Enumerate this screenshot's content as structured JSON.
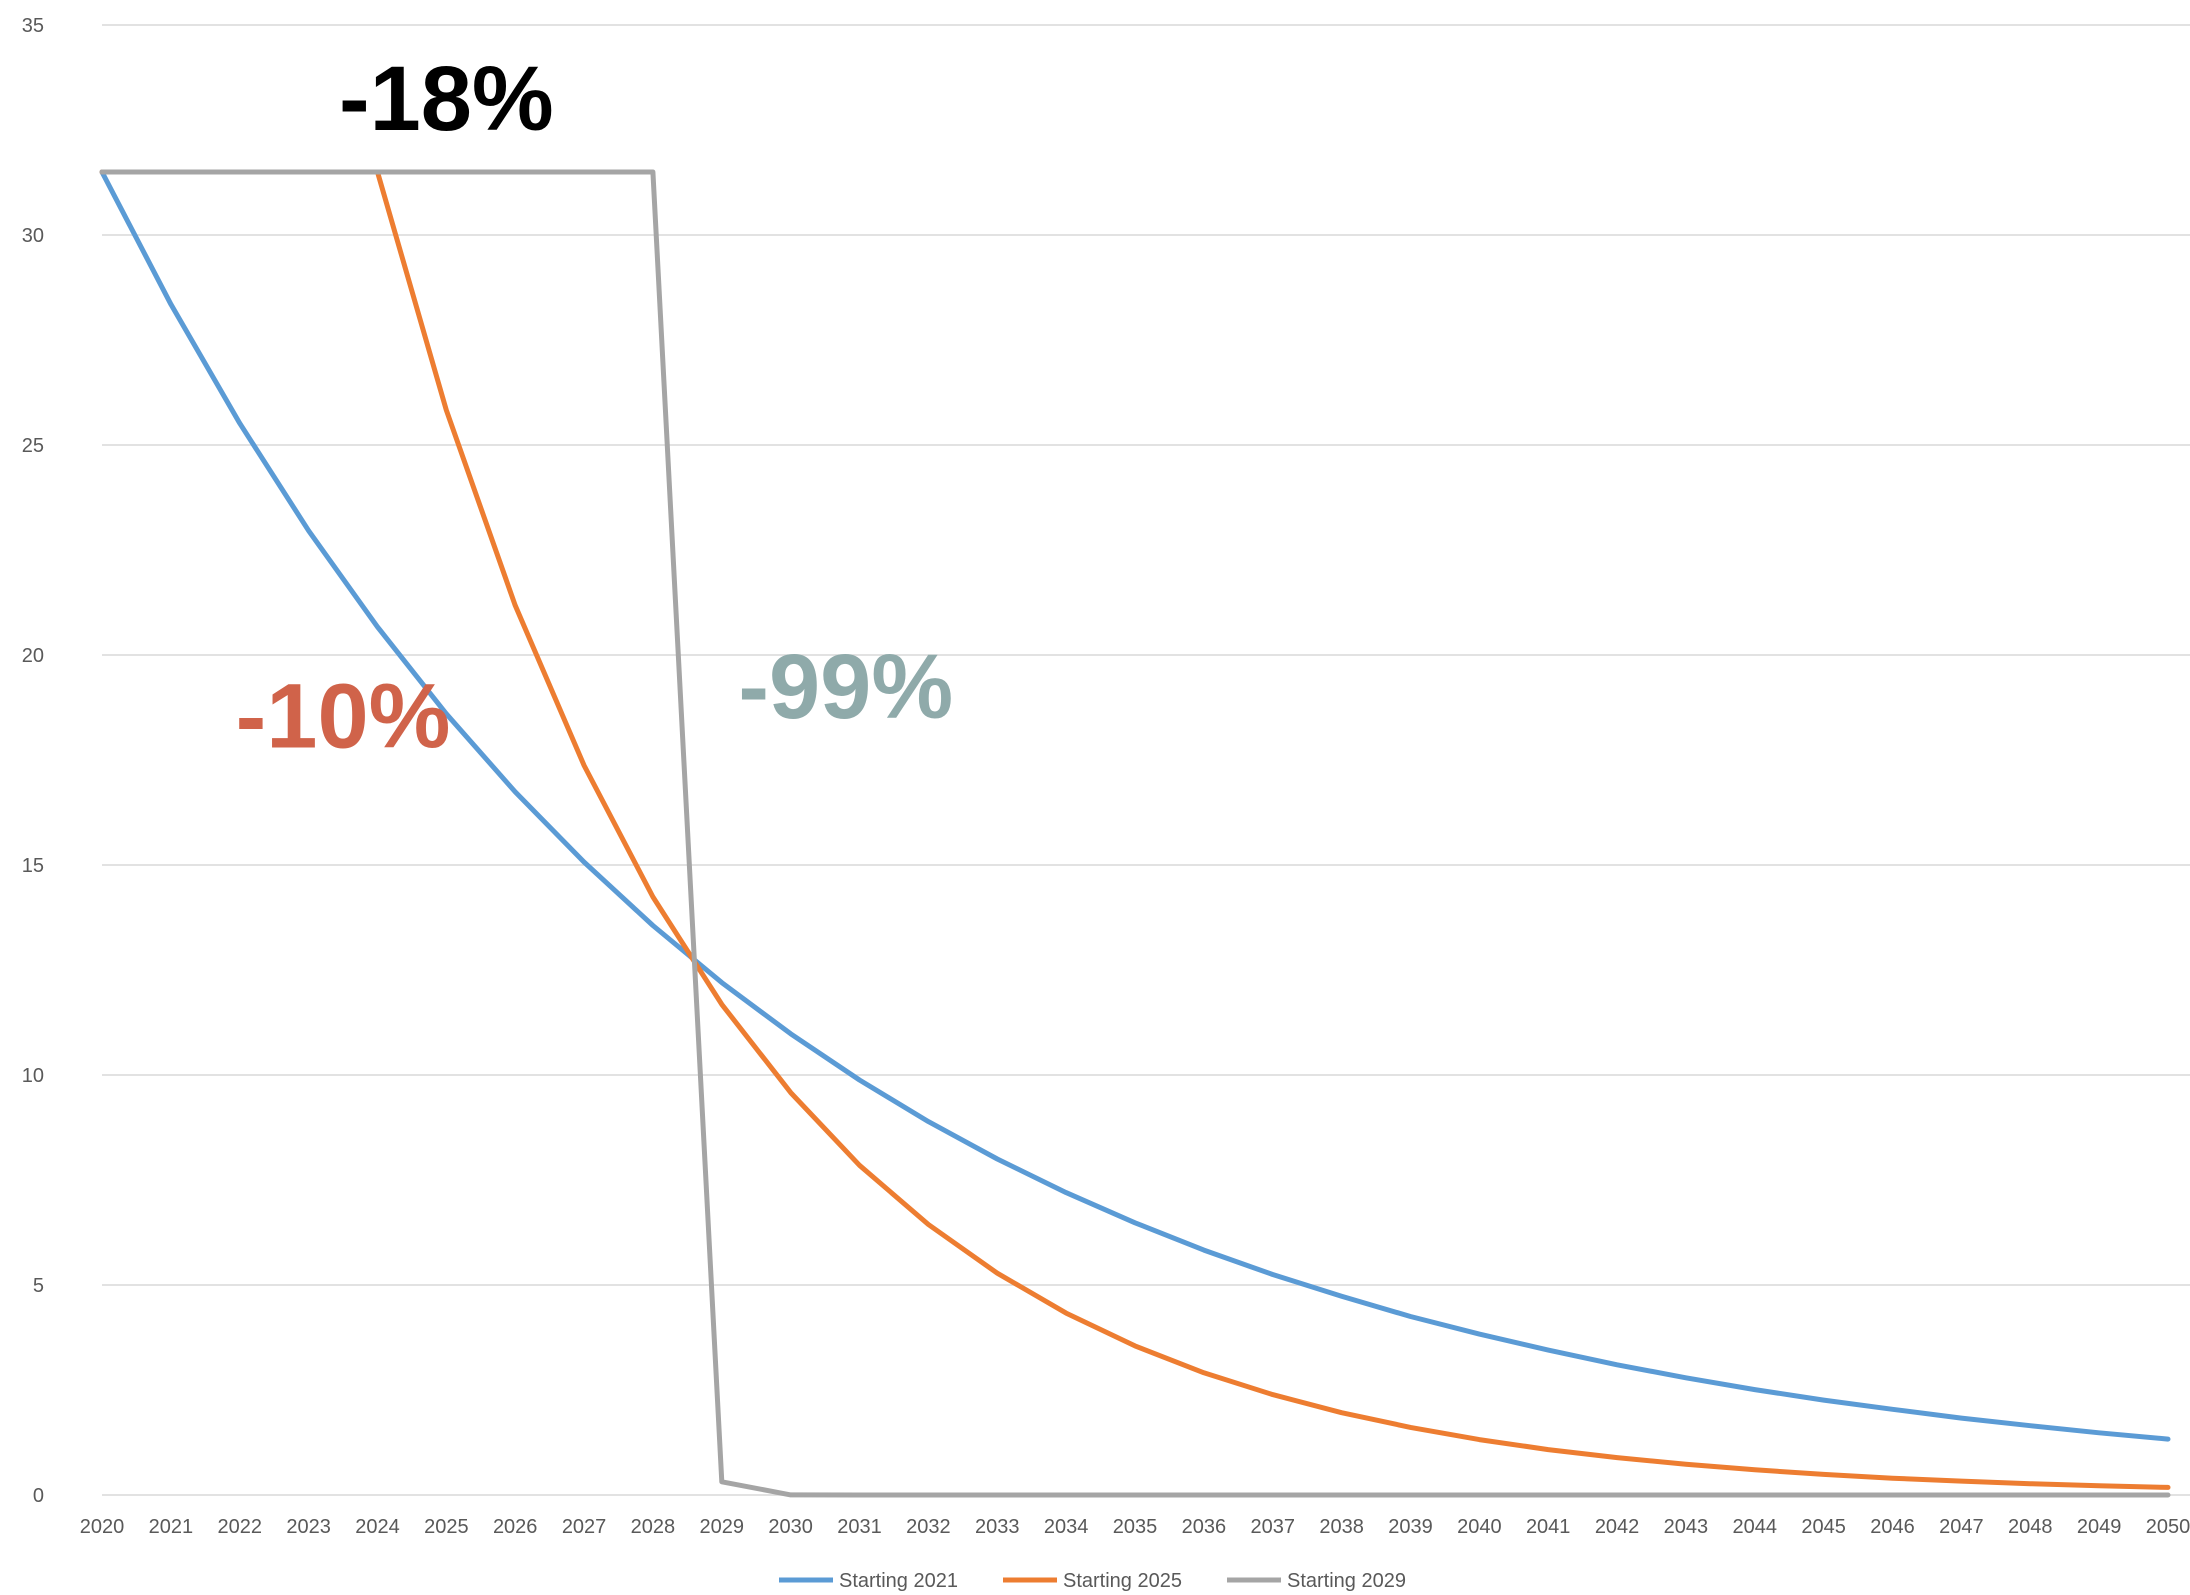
{
  "chart_data": {
    "type": "line",
    "title": "",
    "xlabel": "",
    "ylabel": "",
    "x": [
      2020,
      2021,
      2022,
      2023,
      2024,
      2025,
      2026,
      2027,
      2028,
      2029,
      2030,
      2031,
      2032,
      2033,
      2034,
      2035,
      2036,
      2037,
      2038,
      2039,
      2040,
      2041,
      2042,
      2043,
      2044,
      2045,
      2046,
      2047,
      2048,
      2049,
      2050
    ],
    "x_tick_labels": [
      "2020",
      "2021",
      "2022",
      "2023",
      "2024",
      "2025",
      "2026",
      "2027",
      "2028",
      "2029",
      "2030",
      "2031",
      "2032",
      "2033",
      "2034",
      "2035",
      "2036",
      "2037",
      "2038",
      "2039",
      "2040",
      "2041",
      "2042",
      "2043",
      "2044",
      "2045",
      "2046",
      "2047",
      "2048",
      "2049",
      "2050"
    ],
    "y_tick_labels": [
      "0",
      "5",
      "10",
      "15",
      "20",
      "25",
      "30",
      "35"
    ],
    "y_ticks": [
      0,
      5,
      10,
      15,
      20,
      25,
      30,
      35
    ],
    "ylim": [
      0,
      35
    ],
    "grid": true,
    "legend_position": "bottom",
    "series": [
      {
        "name": "Starting 2021",
        "color": "#5B9BD5",
        "values": [
          31.5,
          28.35,
          25.52,
          22.96,
          20.67,
          18.6,
          16.74,
          15.07,
          13.56,
          12.2,
          10.98,
          9.88,
          8.89,
          8.0,
          7.2,
          6.48,
          5.83,
          5.25,
          4.73,
          4.25,
          3.83,
          3.45,
          3.1,
          2.79,
          2.51,
          2.26,
          2.04,
          1.83,
          1.65,
          1.48,
          1.33
        ]
      },
      {
        "name": "Starting 2025",
        "color": "#ED7D31",
        "values": [
          31.5,
          31.5,
          31.5,
          31.5,
          31.5,
          25.83,
          21.18,
          17.37,
          14.24,
          11.68,
          9.58,
          7.85,
          6.44,
          5.28,
          4.33,
          3.55,
          2.91,
          2.39,
          1.96,
          1.61,
          1.32,
          1.08,
          0.89,
          0.73,
          0.6,
          0.49,
          0.4,
          0.33,
          0.27,
          0.22,
          0.18
        ]
      },
      {
        "name": "Starting 2029",
        "color": "#A5A5A5",
        "values": [
          31.5,
          31.5,
          31.5,
          31.5,
          31.5,
          31.5,
          31.5,
          31.5,
          31.5,
          0.315,
          0.003,
          0,
          0,
          0,
          0,
          0,
          0,
          0,
          0,
          0,
          0,
          0,
          0,
          0,
          0,
          0,
          0,
          0,
          0,
          0,
          0
        ]
      }
    ],
    "annotations": [
      {
        "text": "-18%",
        "color": "#000000",
        "at_x": 2025,
        "at_y": 32.5
      },
      {
        "text": "-10%",
        "color": "#D0634A",
        "at_x": 2023.5,
        "at_y": 17.8
      },
      {
        "text": "-99%",
        "color": "#8FAAAA",
        "at_x": 2030.8,
        "at_y": 18.5
      }
    ]
  }
}
